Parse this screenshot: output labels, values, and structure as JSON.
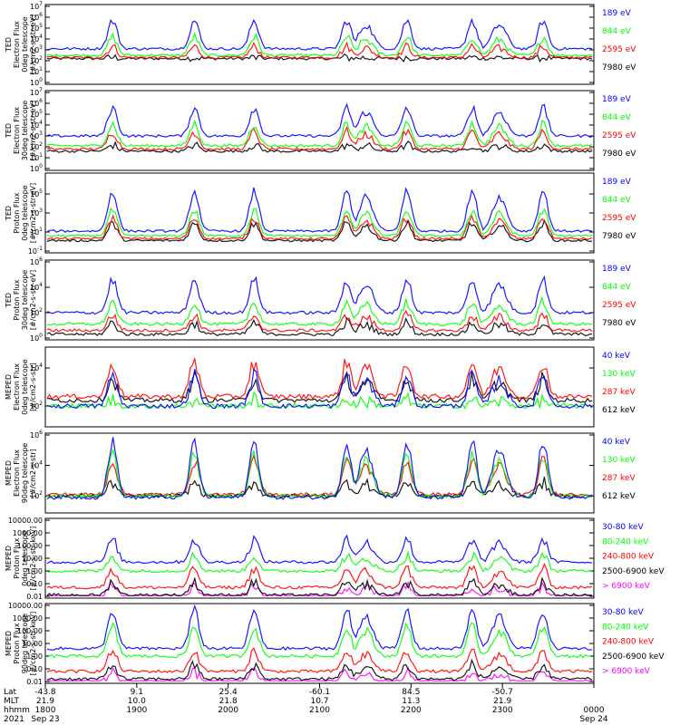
{
  "chart_data": [
    {
      "type": "line",
      "ylabel": [
        "TED",
        "Electron Flux",
        "0deg telescope",
        "[#/cm2-s-str-eV]"
      ],
      "ylim": [
        1,
        10000000
      ],
      "yscale": "log",
      "ytick_labels": [
        "10^0",
        "10^1",
        "10^2",
        "10^3",
        "10^4",
        "10^5",
        "10^6",
        "10^7"
      ],
      "series": [
        {
          "name": "7980 eV",
          "color": "#000000",
          "base": 2.2,
          "peak": 2.3
        },
        {
          "name": "2595 eV",
          "color": "#ff0000",
          "base": 2.3,
          "peak": 3.3
        },
        {
          "name": "844 eV",
          "color": "#00ff00",
          "base": 2.5,
          "peak": 4.2
        },
        {
          "name": "189 eV",
          "color": "#0000ff",
          "base": 3.1,
          "peak": 5.7
        }
      ]
    },
    {
      "type": "line",
      "ylabel": [
        "TED",
        "Electron Flux",
        "30deg telescope",
        "[#/cm2-s-str-eV]"
      ],
      "ylim": [
        1,
        10000000
      ],
      "yscale": "log",
      "ytick_labels": [
        "10^0",
        "10^1",
        "10^2",
        "10^3",
        "10^4",
        "10^5",
        "10^6",
        "10^7"
      ],
      "series": [
        {
          "name": "7980 eV",
          "color": "#000000",
          "base": 1.6,
          "peak": 2.2
        },
        {
          "name": "2595 eV",
          "color": "#ff0000",
          "base": 1.8,
          "peak": 3.4
        },
        {
          "name": "844 eV",
          "color": "#00ff00",
          "base": 2.1,
          "peak": 4.1
        },
        {
          "name": "189 eV",
          "color": "#0000ff",
          "base": 3.0,
          "peak": 5.6
        }
      ]
    },
    {
      "type": "line",
      "ylabel": [
        "TED",
        "Proton Flux",
        "0deg telescope",
        "[#/cm2-s-str-eV]"
      ],
      "ylim": [
        0.1,
        10000000
      ],
      "yscale": "log",
      "ytick_labels": [
        "10^-1",
        "10^1",
        "10^3",
        "10^5"
      ],
      "series": [
        {
          "name": "7980 eV",
          "color": "#000000",
          "base": 0.1,
          "peak": 1.9
        },
        {
          "name": "2595 eV",
          "color": "#ff0000",
          "base": 0.3,
          "peak": 2.5
        },
        {
          "name": "844 eV",
          "color": "#00ff00",
          "base": 0.6,
          "peak": 3.3
        },
        {
          "name": "189 eV",
          "color": "#0000ff",
          "base": 1.1,
          "peak": 5.3
        }
      ]
    },
    {
      "type": "line",
      "ylabel": [
        "TED",
        "Proton Flux",
        "30deg telescope",
        "[#/cm2-s-str-eV]"
      ],
      "ylim": [
        1,
        1000000
      ],
      "yscale": "log",
      "ytick_labels": [
        "10^0",
        "10^2",
        "10^4",
        "10^6"
      ],
      "series": [
        {
          "name": "7980 eV",
          "color": "#000000",
          "base": 0.3,
          "peak": 1.2
        },
        {
          "name": "2595 eV",
          "color": "#ff0000",
          "base": 0.6,
          "peak": 1.8
        },
        {
          "name": "844 eV",
          "color": "#00ff00",
          "base": 1.1,
          "peak": 2.8
        },
        {
          "name": "189 eV",
          "color": "#0000ff",
          "base": 2.0,
          "peak": 4.6
        }
      ]
    },
    {
      "type": "line",
      "ylabel": [
        "MEPED",
        "Electron Flux",
        "0deg telescope",
        "[#/cm2-s-str]"
      ],
      "ylim": [
        10,
        100000
      ],
      "yscale": "log",
      "ytick_labels": [
        "10^2",
        "10^4"
      ],
      "series": [
        {
          "name": "612 keV",
          "color": "#000000",
          "base": 2.3,
          "peak": 3.4
        },
        {
          "name": "287 keV",
          "color": "#ff0000",
          "base": 2.5,
          "peak": 4.3
        },
        {
          "name": "130 keV",
          "color": "#00ff00",
          "base": 2.0,
          "peak": 2.3
        },
        {
          "name": "40 keV",
          "color": "#0000ff",
          "base": 2.0,
          "peak": 3.6
        }
      ]
    },
    {
      "type": "line",
      "ylabel": [
        "MEPED",
        "Electron Flux",
        "90deg telescope",
        "[#/cm2-s-str]"
      ],
      "ylim": [
        10,
        1000000
      ],
      "yscale": "log",
      "ytick_labels": [
        "10^2",
        "10^4",
        "10^6"
      ],
      "series": [
        {
          "name": "612 keV",
          "color": "#000000",
          "base": 2.0,
          "peak": 2.9
        },
        {
          "name": "287 keV",
          "color": "#ff0000",
          "base": 2.1,
          "peak": 4.3
        },
        {
          "name": "130 keV",
          "color": "#00ff00",
          "base": 2.0,
          "peak": 4.7
        },
        {
          "name": "40 keV",
          "color": "#0000ff",
          "base": 1.9,
          "peak": 5.5
        }
      ]
    },
    {
      "type": "line",
      "ylabel": [
        "MEPED",
        "Proton Flux",
        "0deg telescope",
        "[#/cm2-s-str-keV]"
      ],
      "ylim": [
        0.01,
        10000
      ],
      "yscale": "log",
      "ytick_labels": [
        "0.01",
        "0.10",
        "1.00",
        "10.00",
        "100.00",
        "1000.00",
        "10000.00"
      ],
      "series": [
        {
          "name": "> 6900 keV",
          "color": "#ff00ff",
          "base": -2.0,
          "peak": -1.2
        },
        {
          "name": "2500-6900 keV",
          "color": "#000000",
          "base": -1.9,
          "peak": -0.9
        },
        {
          "name": "240-800 keV",
          "color": "#ff0000",
          "base": -1.3,
          "peak": 0.2
        },
        {
          "name": "80-240 keV",
          "color": "#00ff00",
          "base": 0.0,
          "peak": 1.2
        },
        {
          "name": "30-80 keV",
          "color": "#0000ff",
          "base": 0.7,
          "peak": 2.5
        }
      ]
    },
    {
      "type": "line",
      "ylabel": [
        "MEPED",
        "Proton Flux",
        "90deg telescope",
        "[#/cm2-s-str-keV]"
      ],
      "ylim": [
        0.01,
        10000
      ],
      "yscale": "log",
      "ytick_labels": [
        "0.01",
        "0.10",
        "1.00",
        "10.00",
        "100.00",
        "1000.00",
        "10000.00"
      ],
      "series": [
        {
          "name": "> 6900 keV",
          "color": "#ff00ff",
          "base": -2.0,
          "peak": -1.3
        },
        {
          "name": "2500-6900 keV",
          "color": "#000000",
          "base": -1.8,
          "peak": -0.7
        },
        {
          "name": "240-800 keV",
          "color": "#ff0000",
          "base": -1.2,
          "peak": 0.4
        },
        {
          "name": "80-240 keV",
          "color": "#00ff00",
          "base": 0.0,
          "peak": 2.3
        },
        {
          "name": "30-80 keV",
          "color": "#0000ff",
          "base": 0.6,
          "peak": 3.6
        }
      ]
    }
  ],
  "time_axis": {
    "row_labels": [
      "Lat",
      "MLT",
      "hhmm",
      "2021"
    ],
    "columns": [
      {
        "lat": "-43.8",
        "mlt": "21.9",
        "hhmm": "1800",
        "date": "Sep 23"
      },
      {
        "lat": "9.1",
        "mlt": "10.0",
        "hhmm": "1900",
        "date": ""
      },
      {
        "lat": "25.4",
        "mlt": "21.8",
        "hhmm": "2000",
        "date": ""
      },
      {
        "lat": "-60.1",
        "mlt": "10.7",
        "hhmm": "2100",
        "date": ""
      },
      {
        "lat": "84.5",
        "mlt": "11.3",
        "hhmm": "2200",
        "date": ""
      },
      {
        "lat": "-50.7",
        "mlt": "21.9",
        "hhmm": "2300",
        "date": ""
      },
      {
        "lat": "",
        "mlt": "",
        "hhmm": "0000",
        "date": "Sep 24"
      }
    ],
    "range": [
      "1800",
      "0000"
    ]
  }
}
